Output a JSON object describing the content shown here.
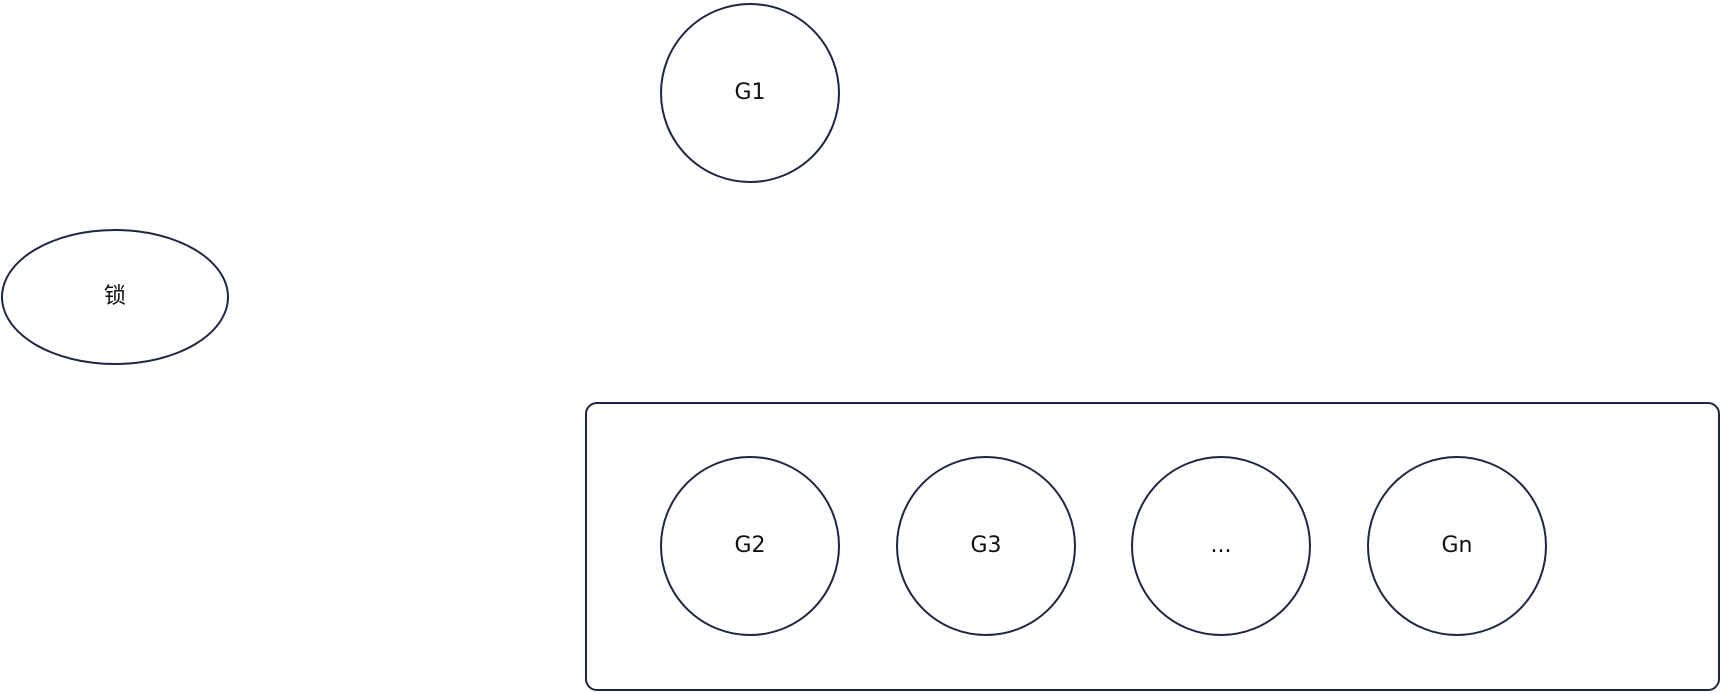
{
  "diagram": {
    "lock_label": "锁",
    "running_label": "G1",
    "waiting_queue": {
      "items": [
        "G2",
        "G3",
        "...",
        "Gn"
      ]
    }
  }
}
